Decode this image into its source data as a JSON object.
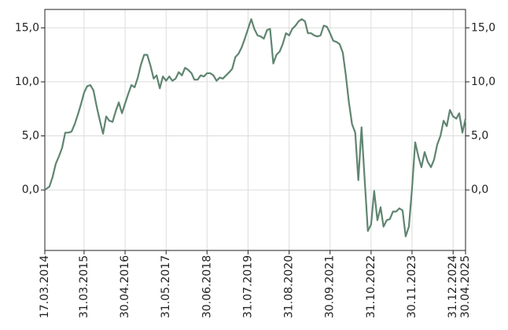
{
  "chart_data": {
    "type": "line",
    "x": [
      "17.03.2014",
      "30.04.2014",
      "31.05.2014",
      "30.06.2014",
      "31.07.2014",
      "31.08.2014",
      "30.09.2014",
      "31.10.2014",
      "30.11.2014",
      "31.12.2014",
      "31.01.2015",
      "28.02.2015",
      "31.03.2015",
      "30.04.2015",
      "31.05.2015",
      "30.06.2015",
      "31.07.2015",
      "31.08.2015",
      "30.09.2015",
      "31.10.2015",
      "30.11.2015",
      "31.12.2015",
      "31.01.2016",
      "29.02.2016",
      "31.03.2016",
      "30.04.2016",
      "31.05.2016",
      "30.06.2016",
      "31.07.2016",
      "31.08.2016",
      "30.09.2016",
      "31.10.2016",
      "30.11.2016",
      "31.12.2016",
      "31.01.2017",
      "28.02.2017",
      "31.03.2017",
      "30.04.2017",
      "31.05.2017",
      "30.06.2017",
      "31.07.2017",
      "31.08.2017",
      "30.09.2017",
      "31.10.2017",
      "30.11.2017",
      "31.12.2017",
      "31.01.2018",
      "28.02.2018",
      "31.03.2018",
      "30.04.2018",
      "31.05.2018",
      "30.06.2018",
      "31.07.2018",
      "31.08.2018",
      "30.09.2018",
      "31.10.2018",
      "30.11.2018",
      "31.12.2018",
      "31.01.2019",
      "28.02.2019",
      "31.03.2019",
      "30.04.2019",
      "31.05.2019",
      "30.06.2019",
      "31.07.2019",
      "31.08.2019",
      "30.09.2019",
      "31.10.2019",
      "30.11.2019",
      "31.12.2019",
      "31.01.2020",
      "29.02.2020",
      "31.03.2020",
      "30.04.2020",
      "31.05.2020",
      "30.06.2020",
      "31.07.2020",
      "31.08.2020",
      "30.09.2020",
      "31.10.2020",
      "30.11.2020",
      "31.12.2020",
      "31.01.2021",
      "28.02.2021",
      "31.03.2021",
      "30.04.2021",
      "31.05.2021",
      "30.06.2021",
      "31.07.2021",
      "31.08.2021",
      "30.09.2021",
      "31.10.2021",
      "30.11.2021",
      "31.12.2021",
      "31.01.2022",
      "28.02.2022",
      "31.03.2022",
      "30.04.2022",
      "31.05.2022",
      "30.06.2022",
      "31.07.2022",
      "31.08.2022",
      "30.09.2022",
      "31.10.2022",
      "30.11.2022",
      "31.12.2022",
      "31.01.2023",
      "28.02.2023",
      "31.03.2023",
      "30.04.2023",
      "31.05.2023",
      "30.06.2023",
      "31.07.2023",
      "31.08.2023",
      "30.09.2023",
      "31.10.2023",
      "30.11.2023",
      "31.12.2023",
      "31.01.2024",
      "29.02.2024",
      "31.03.2024",
      "30.04.2024",
      "31.05.2024",
      "30.06.2024",
      "31.07.2024",
      "31.08.2024",
      "30.09.2024",
      "31.10.2024",
      "30.11.2024",
      "31.12.2024",
      "31.01.2025",
      "28.02.2025",
      "31.03.2025",
      "30.04.2025"
    ],
    "values": [
      0,
      0.3,
      1.2,
      2.4,
      3.1,
      3.9,
      5.3,
      5.3,
      5.4,
      6.1,
      7.0,
      7.9,
      9.0,
      9.6,
      9.7,
      9.2,
      7.7,
      6.4,
      5.2,
      6.8,
      6.4,
      6.3,
      7.3,
      8.1,
      7.1,
      8.0,
      8.9,
      9.7,
      9.5,
      10.4,
      11.6,
      12.5,
      12.5,
      11.5,
      10.3,
      10.6,
      9.4,
      10.5,
      10.1,
      10.5,
      10.1,
      10.3,
      10.9,
      10.6,
      11.3,
      11.1,
      10.8,
      10.2,
      10.2,
      10.6,
      10.5,
      10.8,
      10.8,
      10.6,
      10.1,
      10.4,
      10.3,
      10.6,
      10.9,
      11.2,
      12.3,
      12.6,
      13.2,
      14.0,
      14.9,
      15.8,
      14.9,
      14.3,
      14.2,
      14.0,
      14.8,
      14.9,
      11.7,
      12.5,
      12.8,
      13.5,
      14.5,
      14.3,
      14.9,
      15.2,
      15.6,
      15.8,
      15.6,
      14.5,
      14.5,
      14.3,
      14.2,
      14.3,
      15.2,
      15.1,
      14.5,
      13.8,
      13.7,
      13.5,
      12.7,
      10.7,
      8.1,
      6.1,
      5.3,
      0.9,
      5.8,
      0.8,
      -3.8,
      -3.2,
      -0.1,
      -2.8,
      -1.6,
      -3.4,
      -2.8,
      -2.7,
      -2.0,
      -2.0,
      -1.7,
      -1.9,
      -4.3,
      -3.4,
      0.1,
      4.4,
      3.1,
      2.1,
      3.5,
      2.6,
      2.1,
      2.8,
      4.2,
      5.0,
      6.4,
      5.9,
      7.4,
      6.8,
      6.6,
      7.1,
      5.3,
      6.6
    ],
    "color": "#5f8570",
    "xlim": [
      "17.03.2014",
      "30.04.2025"
    ],
    "xticks": [
      "17.03.2014",
      "31.03.2015",
      "30.04.2016",
      "31.05.2017",
      "30.06.2018",
      "31.07.2019",
      "31.08.2020",
      "30.09.2021",
      "31.10.2022",
      "30.11.2023",
      "31.12.2024",
      "30.04.2025"
    ],
    "ylim": [
      -5.6,
      16.7
    ],
    "yticks": [
      {
        "value": 0,
        "label": "0,0"
      },
      {
        "value": 5,
        "label": "5,0"
      },
      {
        "value": 10,
        "label": "10,0"
      },
      {
        "value": 15,
        "label": "15,0"
      }
    ],
    "grid": true
  }
}
